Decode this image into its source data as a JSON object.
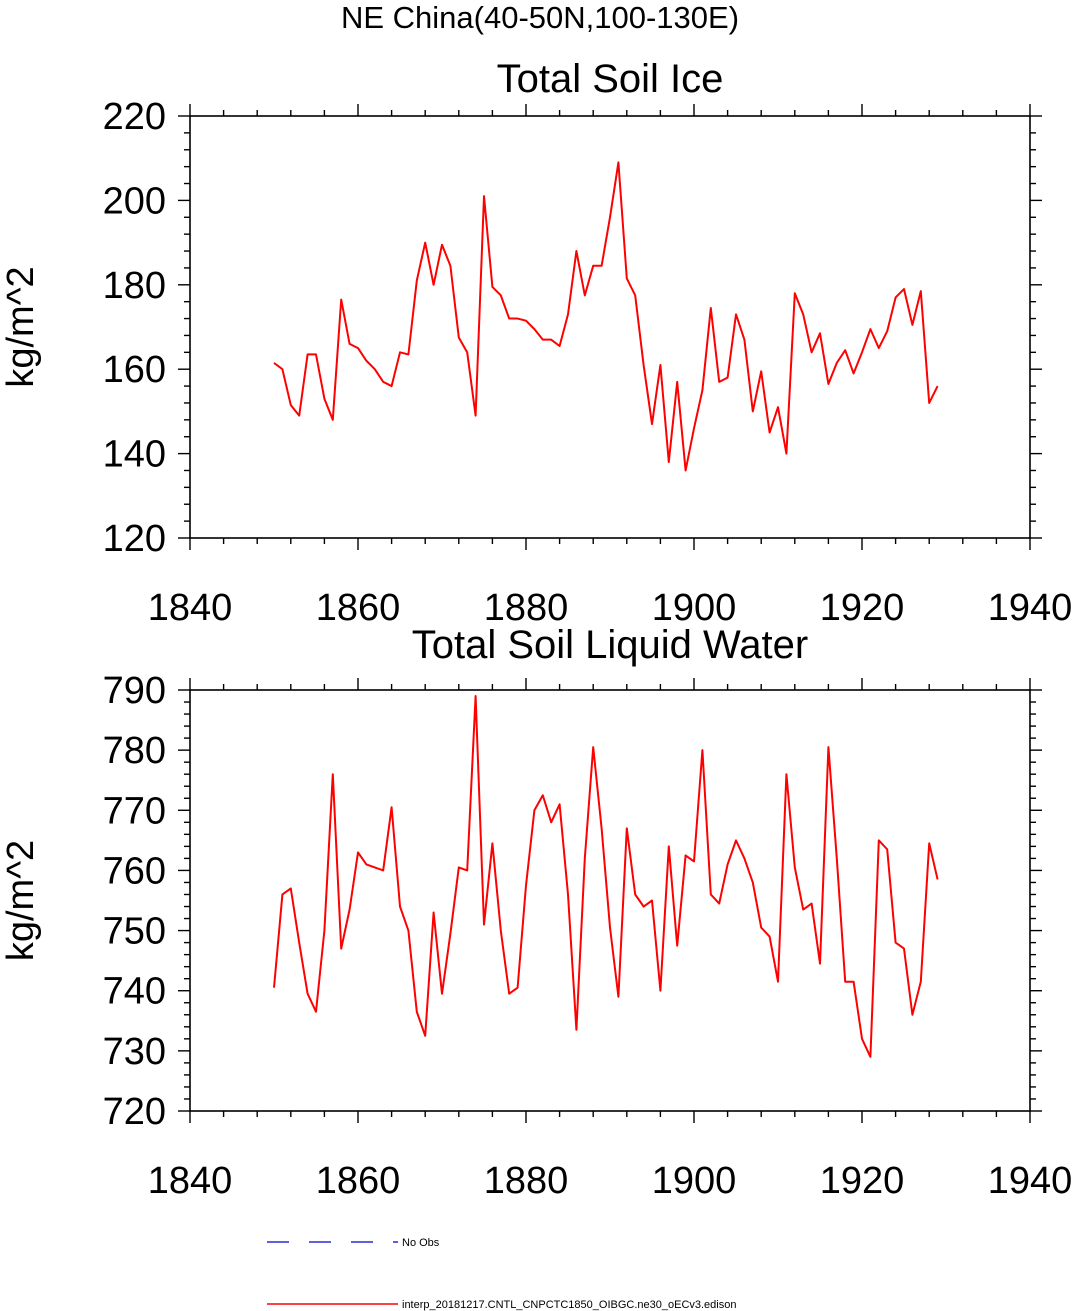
{
  "figure_title": "NE China(40-50N,100-130E)",
  "colors": {
    "series": "#ff0000",
    "no_obs": "#0000cc",
    "axis": "#000000"
  },
  "legend": {
    "entries": [
      {
        "label": "No Obs",
        "style": "dashed",
        "color": "#0000cc"
      },
      {
        "label": "interp_20181217.CNTL_CNPCTC1850_OIBGC.ne30_oECv3.edison",
        "style": "solid",
        "color": "#ff0000"
      }
    ]
  },
  "chart_data": [
    {
      "type": "line",
      "title": "Total Soil Ice",
      "ylabel": "kg/m^2",
      "xlabel": "",
      "xlim": [
        1840,
        1940
      ],
      "ylim": [
        120,
        220
      ],
      "xticks": [
        1840,
        1860,
        1880,
        1900,
        1920,
        1940
      ],
      "yticks": [
        120,
        140,
        160,
        180,
        200,
        220
      ],
      "x_start": 1850,
      "series": [
        {
          "name": "interp_20181217.CNTL_CNPCTC1850_OIBGC.ne30_oECv3.edison",
          "values": [
            161.5,
            160.0,
            151.5,
            149.0,
            163.5,
            163.5,
            153.0,
            148.0,
            176.5,
            166.0,
            165.0,
            162.0,
            160.0,
            157.0,
            156.0,
            164.0,
            163.5,
            181.0,
            190.0,
            180.0,
            189.5,
            184.5,
            167.5,
            164.0,
            149.0,
            201.0,
            179.5,
            177.5,
            172.0,
            172.0,
            171.5,
            169.5,
            167.0,
            167.0,
            165.5,
            173.0,
            188.0,
            177.5,
            184.5,
            184.5,
            196.0,
            209.0,
            181.5,
            177.5,
            161.0,
            147.0,
            161.0,
            138.0,
            157.0,
            136.0,
            146.0,
            155.0,
            174.5,
            157.0,
            158.0,
            173.0,
            167.0,
            150.0,
            159.5,
            145.0,
            151.0,
            140.0,
            178.0,
            173.0,
            164.0,
            168.5,
            156.5,
            161.5,
            164.5,
            159.0,
            164.0,
            169.5,
            165.0,
            169.0,
            177.0,
            179.0,
            170.5,
            178.5,
            152.0,
            156.0
          ]
        }
      ]
    },
    {
      "type": "line",
      "title": "Total Soil Liquid Water",
      "ylabel": "kg/m^2",
      "xlabel": "",
      "xlim": [
        1840,
        1940
      ],
      "ylim": [
        720,
        790
      ],
      "xticks": [
        1840,
        1860,
        1880,
        1900,
        1920,
        1940
      ],
      "yticks": [
        720,
        730,
        740,
        750,
        760,
        770,
        780,
        790
      ],
      "x_start": 1850,
      "series": [
        {
          "name": "interp_20181217.CNTL_CNPCTC1850_OIBGC.ne30_oECv3.edison",
          "values": [
            740.5,
            756.0,
            757.0,
            748.0,
            739.5,
            736.5,
            750.0,
            776.0,
            747.0,
            753.5,
            763.0,
            761.0,
            760.5,
            760.0,
            770.5,
            754.0,
            750.0,
            736.5,
            732.5,
            753.0,
            739.5,
            749.5,
            760.5,
            760.0,
            789.0,
            751.0,
            764.5,
            750.0,
            739.5,
            740.5,
            757.5,
            770.0,
            772.5,
            768.0,
            771.0,
            756.0,
            733.5,
            762.0,
            780.5,
            767.0,
            750.5,
            739.0,
            767.0,
            756.0,
            754.0,
            755.0,
            740.0,
            764.0,
            747.5,
            762.5,
            761.5,
            780.0,
            756.0,
            754.5,
            761.0,
            765.0,
            762.0,
            758.0,
            750.5,
            749.0,
            741.5,
            776.0,
            760.5,
            753.5,
            754.5,
            744.5,
            780.5,
            762.0,
            741.5,
            741.5,
            732.0,
            729.0,
            765.0,
            763.5,
            748.0,
            747.0,
            736.0,
            741.5,
            764.5,
            758.5
          ]
        }
      ]
    }
  ]
}
